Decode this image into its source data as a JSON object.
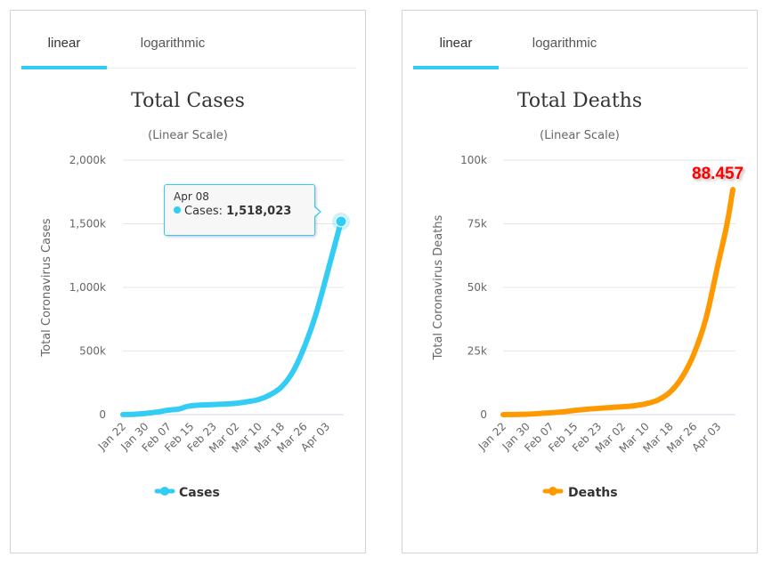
{
  "panels": [
    {
      "tabs": [
        {
          "label": "linear",
          "active": true
        },
        {
          "label": "logarithmic",
          "active": false
        }
      ],
      "legend_label": "Cases",
      "tooltip": {
        "date": "Apr 08",
        "series": "Cases:",
        "value": "1,518,023"
      }
    },
    {
      "tabs": [
        {
          "label": "linear",
          "active": true
        },
        {
          "label": "logarithmic",
          "active": false
        }
      ],
      "legend_label": "Deaths",
      "annotation": "88.457"
    }
  ],
  "chart_data": [
    {
      "type": "line",
      "title": "Total Cases",
      "subtitle": "(Linear Scale)",
      "xlabel": "",
      "ylabel": "Total Coronavirus Cases",
      "ylim": [
        0,
        2000000
      ],
      "yticks": [
        0,
        500000,
        1000000,
        1500000,
        2000000
      ],
      "ytick_labels": [
        "0",
        "500k",
        "1,000k",
        "1,500k",
        "2,000k"
      ],
      "xtick_labels": [
        "Jan 22",
        "Jan 30",
        "Feb 07",
        "Feb 15",
        "Feb 23",
        "Mar 02",
        "Mar 10",
        "Mar 18",
        "Mar 26",
        "Apr 03"
      ],
      "grid": true,
      "legend": "bottom-center",
      "color": "#33ccf5",
      "series": [
        {
          "name": "Cases",
          "x": [
            "Jan 22",
            "Jan 26",
            "Jan 30",
            "Feb 03",
            "Feb 07",
            "Feb 11",
            "Feb 13",
            "Feb 15",
            "Feb 19",
            "Feb 23",
            "Feb 27",
            "Mar 02",
            "Mar 06",
            "Mar 10",
            "Mar 14",
            "Mar 18",
            "Mar 22",
            "Mar 26",
            "Mar 30",
            "Apr 03",
            "Apr 06",
            "Apr 08"
          ],
          "values": [
            580,
            2900,
            9900,
            20600,
            34900,
            45200,
            60400,
            69200,
            75700,
            79300,
            83100,
            89200,
            101800,
            119300,
            156600,
            218000,
            337000,
            530000,
            780000,
            1100000,
            1350000,
            1518023
          ]
        }
      ]
    },
    {
      "type": "line",
      "title": "Total Deaths",
      "subtitle": "(Linear Scale)",
      "xlabel": "",
      "ylabel": "Total Coronavirus Deaths",
      "ylim": [
        0,
        100000
      ],
      "yticks": [
        0,
        25000,
        50000,
        75000,
        100000
      ],
      "ytick_labels": [
        "0",
        "25k",
        "50k",
        "75k",
        "100k"
      ],
      "xtick_labels": [
        "Jan 22",
        "Jan 30",
        "Feb 07",
        "Feb 15",
        "Feb 23",
        "Mar 02",
        "Mar 10",
        "Mar 18",
        "Mar 26",
        "Apr 03"
      ],
      "grid": true,
      "legend": "bottom-center",
      "color": "#ff9900",
      "series": [
        {
          "name": "Deaths",
          "x": [
            "Jan 22",
            "Jan 26",
            "Jan 30",
            "Feb 03",
            "Feb 07",
            "Feb 11",
            "Feb 15",
            "Feb 19",
            "Feb 23",
            "Feb 27",
            "Mar 02",
            "Mar 06",
            "Mar 10",
            "Mar 14",
            "Mar 18",
            "Mar 22",
            "Mar 26",
            "Mar 30",
            "Apr 03",
            "Apr 06",
            "Apr 08"
          ],
          "values": [
            17,
            56,
            170,
            427,
            724,
            1113,
            1666,
            2122,
            2470,
            2800,
            3100,
            3500,
            4300,
            5800,
            8900,
            14700,
            24000,
            37800,
            58900,
            74600,
            88457
          ]
        }
      ]
    }
  ]
}
